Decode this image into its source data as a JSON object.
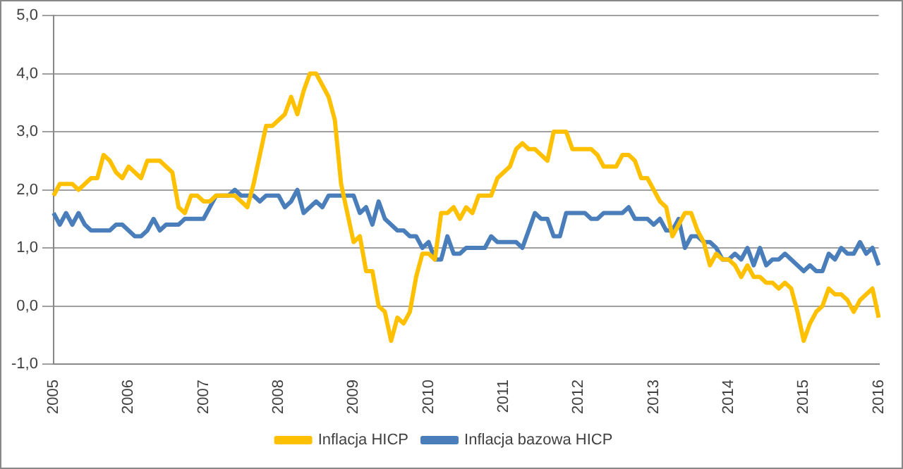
{
  "chart_data": {
    "type": "line",
    "categories": [
      "2005",
      null,
      null,
      null,
      null,
      null,
      null,
      null,
      null,
      null,
      null,
      null,
      "2006",
      null,
      null,
      null,
      null,
      null,
      null,
      null,
      null,
      null,
      null,
      null,
      "2007",
      null,
      null,
      null,
      null,
      null,
      null,
      null,
      null,
      null,
      null,
      null,
      "2008",
      null,
      null,
      null,
      null,
      null,
      null,
      null,
      null,
      null,
      null,
      null,
      "2009",
      null,
      null,
      null,
      null,
      null,
      null,
      null,
      null,
      null,
      null,
      null,
      "2010",
      null,
      null,
      null,
      null,
      null,
      null,
      null,
      null,
      null,
      null,
      null,
      "2011",
      null,
      null,
      null,
      null,
      null,
      null,
      null,
      null,
      null,
      null,
      null,
      "2012",
      null,
      null,
      null,
      null,
      null,
      null,
      null,
      null,
      null,
      null,
      null,
      "2013",
      null,
      null,
      null,
      null,
      null,
      null,
      null,
      null,
      null,
      null,
      null,
      "2014",
      null,
      null,
      null,
      null,
      null,
      null,
      null,
      null,
      null,
      null,
      null,
      "2015",
      null,
      null,
      null,
      null,
      null,
      null,
      null,
      null,
      null,
      null,
      null,
      "2016"
    ],
    "series": [
      {
        "name": "Inflacja HICP",
        "color": "#ffc000",
        "values": [
          1.9,
          2.1,
          2.1,
          2.1,
          2.0,
          2.1,
          2.2,
          2.2,
          2.6,
          2.5,
          2.3,
          2.2,
          2.4,
          2.3,
          2.2,
          2.5,
          2.5,
          2.5,
          2.4,
          2.3,
          1.7,
          1.6,
          1.9,
          1.9,
          1.8,
          1.8,
          1.9,
          1.9,
          1.9,
          1.9,
          1.8,
          1.7,
          2.1,
          2.6,
          3.1,
          3.1,
          3.2,
          3.3,
          3.6,
          3.3,
          3.7,
          4.0,
          4.0,
          3.8,
          3.6,
          3.2,
          2.1,
          1.6,
          1.1,
          1.2,
          0.6,
          0.6,
          0.0,
          -0.1,
          -0.6,
          -0.2,
          -0.3,
          -0.1,
          0.5,
          0.9,
          0.9,
          0.8,
          1.6,
          1.6,
          1.7,
          1.5,
          1.7,
          1.6,
          1.9,
          1.9,
          1.9,
          2.2,
          2.3,
          2.4,
          2.7,
          2.8,
          2.7,
          2.7,
          2.6,
          2.5,
          3.0,
          3.0,
          3.0,
          2.7,
          2.7,
          2.7,
          2.7,
          2.6,
          2.4,
          2.4,
          2.4,
          2.6,
          2.6,
          2.5,
          2.2,
          2.2,
          2.0,
          1.8,
          1.7,
          1.2,
          1.4,
          1.6,
          1.6,
          1.3,
          1.1,
          0.7,
          0.9,
          0.8,
          0.8,
          0.7,
          0.5,
          0.7,
          0.5,
          0.5,
          0.4,
          0.4,
          0.3,
          0.4,
          0.3,
          -0.1,
          -0.6,
          -0.3,
          -0.1,
          0.0,
          0.3,
          0.2,
          0.2,
          0.1,
          -0.1,
          0.1,
          0.2,
          0.3,
          -0.2
        ]
      },
      {
        "name": "Inflacja bazowa HICP",
        "color": "#4a7ebb",
        "values": [
          1.6,
          1.4,
          1.6,
          1.4,
          1.6,
          1.4,
          1.3,
          1.3,
          1.3,
          1.3,
          1.4,
          1.4,
          1.3,
          1.2,
          1.2,
          1.3,
          1.5,
          1.3,
          1.4,
          1.4,
          1.4,
          1.5,
          1.5,
          1.5,
          1.5,
          1.7,
          1.9,
          1.9,
          1.9,
          2.0,
          1.9,
          1.9,
          1.9,
          1.8,
          1.9,
          1.9,
          1.9,
          1.7,
          1.8,
          2.0,
          1.6,
          1.7,
          1.8,
          1.7,
          1.9,
          1.9,
          1.9,
          1.9,
          1.9,
          1.6,
          1.7,
          1.4,
          1.8,
          1.5,
          1.4,
          1.3,
          1.3,
          1.2,
          1.2,
          1.0,
          1.1,
          0.8,
          0.8,
          1.2,
          0.9,
          0.9,
          1.0,
          1.0,
          1.0,
          1.0,
          1.2,
          1.1,
          1.1,
          1.1,
          1.1,
          1.0,
          1.3,
          1.6,
          1.5,
          1.5,
          1.2,
          1.2,
          1.6,
          1.6,
          1.6,
          1.6,
          1.5,
          1.5,
          1.6,
          1.6,
          1.6,
          1.6,
          1.7,
          1.5,
          1.5,
          1.5,
          1.4,
          1.5,
          1.3,
          1.3,
          1.5,
          1.0,
          1.2,
          1.2,
          1.1,
          1.1,
          1.0,
          0.8,
          0.8,
          0.9,
          0.8,
          1.0,
          0.7,
          1.0,
          0.7,
          0.8,
          0.8,
          0.9,
          0.8,
          0.7,
          0.6,
          0.7,
          0.6,
          0.6,
          0.9,
          0.8,
          1.0,
          0.9,
          0.9,
          1.1,
          0.9,
          1.0,
          0.7
        ]
      }
    ],
    "ylim": [
      -1,
      5
    ],
    "yticks": [
      {
        "value": -1,
        "label": "-1,0"
      },
      {
        "value": 0,
        "label": "0,0"
      },
      {
        "value": 1,
        "label": "1,0"
      },
      {
        "value": 2,
        "label": "2,0"
      },
      {
        "value": 3,
        "label": "3,0"
      },
      {
        "value": 4,
        "label": "4,0"
      },
      {
        "value": 5,
        "label": "5,0"
      }
    ],
    "grid": "y",
    "legend": "bottom",
    "marker": "none",
    "line_style": "solid"
  }
}
